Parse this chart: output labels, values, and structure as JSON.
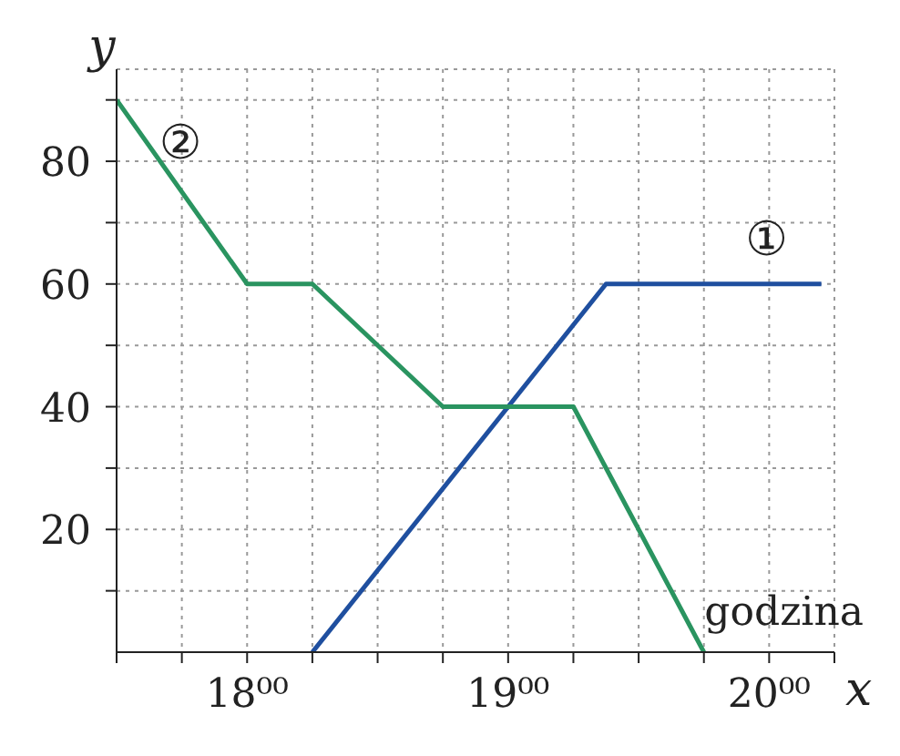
{
  "chart_data": {
    "type": "line",
    "xlabel": "x",
    "ylabel": "y",
    "annotations": [
      "godzina"
    ],
    "xlim": [
      17.5,
      20.25
    ],
    "xticks": [
      {
        "value": 17.5,
        "label": null
      },
      {
        "value": 17.75,
        "label": null
      },
      {
        "value": 18,
        "label": "18⁰⁰"
      },
      {
        "value": 18.25,
        "label": null
      },
      {
        "value": 18.5,
        "label": null
      },
      {
        "value": 18.75,
        "label": null
      },
      {
        "value": 19,
        "label": "19⁰⁰"
      },
      {
        "value": 19.25,
        "label": null
      },
      {
        "value": 19.5,
        "label": null
      },
      {
        "value": 19.75,
        "label": null
      },
      {
        "value": 20,
        "label": "20⁰⁰"
      },
      {
        "value": 20.25,
        "label": null
      }
    ],
    "ylim": [
      0,
      95
    ],
    "yticks": [
      {
        "value": 10,
        "label": null
      },
      20,
      {
        "value": 30,
        "label": null
      },
      40,
      {
        "value": 50,
        "label": null
      },
      60,
      {
        "value": 70,
        "label": null
      },
      80,
      {
        "value": 90,
        "label": null
      }
    ],
    "grid": true,
    "marker": "none",
    "line_style": "solid",
    "legend": false,
    "series": [
      {
        "name": "①",
        "color": "#1f4f9f",
        "x": [
          18.25,
          19.375,
          20.2
        ],
        "values": [
          0,
          60,
          60
        ]
      },
      {
        "name": "②",
        "color": "#2a9460",
        "x": [
          17.5,
          18,
          18.25,
          18.75,
          19.25,
          19.75
        ],
        "values": [
          90,
          60,
          60,
          40,
          40,
          0
        ]
      }
    ]
  }
}
